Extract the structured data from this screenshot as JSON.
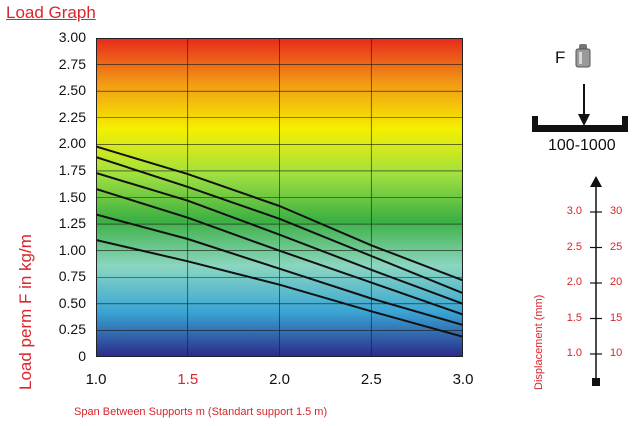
{
  "page": {
    "title": "Load Graph"
  },
  "chart_data": {
    "type": "line",
    "title": "Load Graph",
    "xlabel": "Span Between Supports m (Standart support 1.5 m)",
    "ylabel": "Load perm F in kg/m",
    "xlim": [
      1.0,
      3.0
    ],
    "ylim": [
      0,
      3.0
    ],
    "x_ticks": [
      "1.0",
      "1.5",
      "2.0",
      "2.5",
      "3.0"
    ],
    "x_tick_values": [
      1.0,
      1.5,
      2.0,
      2.5,
      3.0
    ],
    "y_ticks": [
      "0",
      "0.25",
      "0.50",
      "0.75",
      "1.00",
      "1.25",
      "1.50",
      "1.75",
      "2.00",
      "2.25",
      "2.50",
      "2.75",
      "3.00"
    ],
    "y_tick_values": [
      0,
      0.25,
      0.5,
      0.75,
      1.0,
      1.25,
      1.5,
      1.75,
      2.0,
      2.25,
      2.5,
      2.75,
      3.0
    ],
    "grid": true,
    "x": [
      1.0,
      1.5,
      2.0,
      2.5,
      3.0
    ],
    "series": [
      {
        "values": [
          1.98,
          1.72,
          1.42,
          1.05,
          0.72
        ]
      },
      {
        "values": [
          1.88,
          1.6,
          1.3,
          0.95,
          0.6
        ]
      },
      {
        "values": [
          1.73,
          1.47,
          1.15,
          0.82,
          0.5
        ]
      },
      {
        "values": [
          1.58,
          1.31,
          1.0,
          0.7,
          0.4
        ]
      },
      {
        "values": [
          1.34,
          1.11,
          0.83,
          0.55,
          0.3
        ]
      },
      {
        "values": [
          1.1,
          0.9,
          0.68,
          0.43,
          0.19
        ]
      }
    ],
    "background_gradient": [
      "#2a2a8a",
      "#3aa6d4",
      "#8bd6c0",
      "#3cb043",
      "#9fe040",
      "#f5f000",
      "#f29b14",
      "#e8281e"
    ]
  },
  "diagram": {
    "force_label": "F",
    "range_label": "100-1000"
  },
  "displacement": {
    "label": "Displacement (mm)",
    "rows": [
      {
        "left": "3.0",
        "right": "30",
        "value": 30
      },
      {
        "left": "2.5",
        "right": "25",
        "value": 25
      },
      {
        "left": "2.0",
        "right": "20",
        "value": 20
      },
      {
        "left": "1.5",
        "right": "15",
        "value": 15
      },
      {
        "left": "1.0",
        "right": "10",
        "value": 10
      }
    ]
  }
}
